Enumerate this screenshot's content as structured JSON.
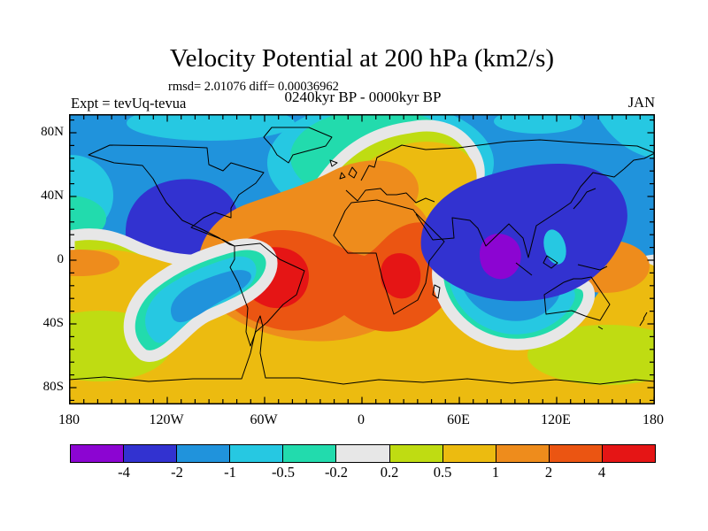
{
  "title": "Velocity Potential at 200 hPa (km2/s)",
  "subtitle": {
    "stats": "rmsd= 2.01076 diff= 0.00036962",
    "period": "0240kyr BP - 0000kyr BP"
  },
  "header": {
    "experiment": "Expt = tevUq-tevua",
    "month": "JAN"
  },
  "axes": {
    "lat_labels": [
      "80N",
      "40N",
      "0",
      "40S",
      "80S"
    ],
    "lon_labels": [
      "180",
      "120W",
      "60W",
      "0",
      "60E",
      "120E",
      "180"
    ]
  },
  "colorbar": {
    "labels": [
      "-4",
      "-2",
      "-1",
      "-0.5",
      "-0.2",
      "0.2",
      "0.5",
      "1",
      "2",
      "4"
    ],
    "colors": [
      "#8C05D2",
      "#3232D0",
      "#2093DC",
      "#26C8E2",
      "#22DBAD",
      "#E7E7E7",
      "#BFDC12",
      "#ECBB10",
      "#EE8C1C",
      "#EB5512",
      "#E51515"
    ]
  },
  "chart_data": {
    "type": "filled_contour_map",
    "projection": "equirectangular",
    "title": "Velocity Potential at 200 hPa (km2/s)",
    "variable": "velocity potential",
    "pressure_level_hPa": 200,
    "units": "km2/s",
    "month": "JAN",
    "experiment": "tevUq-tevua",
    "difference_of": "0240kyr BP - 0000kyr BP",
    "rmsd": 2.01076,
    "diff": 0.00036962,
    "lon_range": [
      -180,
      180
    ],
    "lat_range": [
      -90,
      90
    ],
    "lon_ticks_labeled": [
      -180,
      -120,
      -60,
      0,
      60,
      120,
      180
    ],
    "lat_ticks_labeled": [
      80,
      40,
      0,
      -40,
      -80
    ],
    "contour_levels": [
      -4,
      -2,
      -1,
      -0.5,
      -0.2,
      0.2,
      0.5,
      1,
      2,
      4
    ],
    "palette": [
      "#8C05D2",
      "#3232D0",
      "#2093DC",
      "#26C8E2",
      "#22DBAD",
      "#E7E7E7",
      "#BFDC12",
      "#ECBB10",
      "#EE8C1C",
      "#EB5512",
      "#E51515"
    ],
    "features": [
      {
        "region": "North Pacific / western North America",
        "sign": "negative",
        "value_range": "-4 to -2"
      },
      {
        "region": "South Asia / eastern Indian Ocean centered near India",
        "sign": "negative",
        "value_range": "below -4"
      },
      {
        "region": "East Asia / Northwest Pacific",
        "sign": "negative",
        "value_range": "-4 to -2"
      },
      {
        "region": "South America / South Atlantic",
        "sign": "positive",
        "value_range": "above 4"
      },
      {
        "region": "southern Africa",
        "sign": "positive",
        "value_range": "above 4"
      },
      {
        "region": "western equatorial Pacific near New Guinea",
        "sign": "positive",
        "value_range": "1 to 2"
      },
      {
        "region": "Arctic band",
        "sign": "negative",
        "value_range": "-2 to -1"
      },
      {
        "region": "Antarctic band",
        "sign": "positive",
        "value_range": "0.5 to 1"
      },
      {
        "region": "North Atlantic / Europe ridge",
        "sign": "positive",
        "value_range": "0.2 to 2"
      }
    ]
  }
}
